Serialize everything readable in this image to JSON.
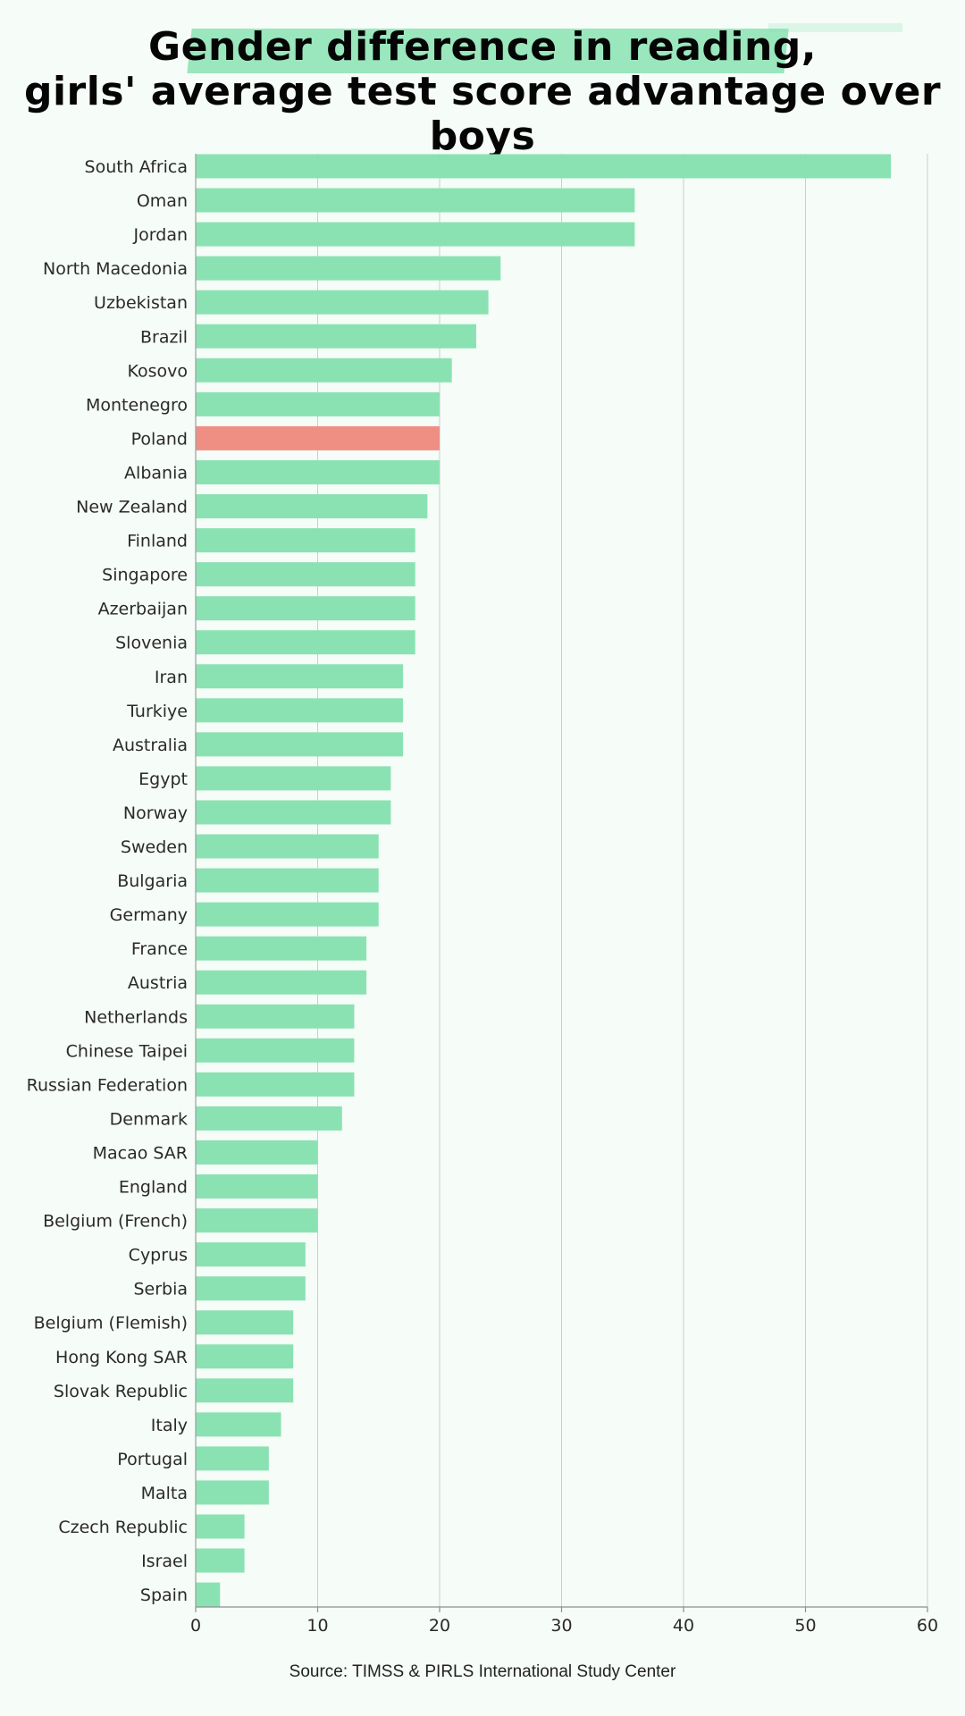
{
  "title": {
    "line1": "Gender difference in reading,",
    "line2": "girls' average test score advantage over boys"
  },
  "source": "Source: TIMSS & PIRLS International Study Center",
  "colors": {
    "bar": "#8ae2b3",
    "highlight": "#ef8f84",
    "grid": "#c9cfcb",
    "text": "#2a2a2a"
  },
  "chart_data": {
    "type": "bar",
    "orientation": "horizontal",
    "title": "Gender difference in reading, girls' average test score advantage over boys",
    "xlabel": "",
    "ylabel": "",
    "xlim": [
      0,
      60
    ],
    "xticks": [
      0,
      10,
      20,
      30,
      40,
      50,
      60
    ],
    "grid": true,
    "highlight": "Poland",
    "categories": [
      "South Africa",
      "Oman",
      "Jordan",
      "North Macedonia",
      "Uzbekistan",
      "Brazil",
      "Kosovo",
      "Montenegro",
      "Poland",
      "Albania",
      "New Zealand",
      "Finland",
      "Singapore",
      "Azerbaijan",
      "Slovenia",
      "Iran",
      "Turkiye",
      "Australia",
      "Egypt",
      "Norway",
      "Sweden",
      "Bulgaria",
      "Germany",
      "France",
      "Austria",
      "Netherlands",
      "Chinese Taipei",
      "Russian Federation",
      "Denmark",
      "Macao SAR",
      "England",
      "Belgium (French)",
      "Cyprus",
      "Serbia",
      "Belgium (Flemish)",
      "Hong Kong SAR",
      "Slovak Republic",
      "Italy",
      "Portugal",
      "Malta",
      "Czech Republic",
      "Israel",
      "Spain"
    ],
    "values": [
      57,
      36,
      36,
      25,
      24,
      23,
      21,
      20,
      20,
      20,
      19,
      18,
      18,
      18,
      18,
      17,
      17,
      17,
      16,
      16,
      15,
      15,
      15,
      14,
      14,
      13,
      13,
      13,
      12,
      10,
      10,
      10,
      9,
      9,
      8,
      8,
      8,
      7,
      6,
      6,
      4,
      4,
      2
    ]
  }
}
